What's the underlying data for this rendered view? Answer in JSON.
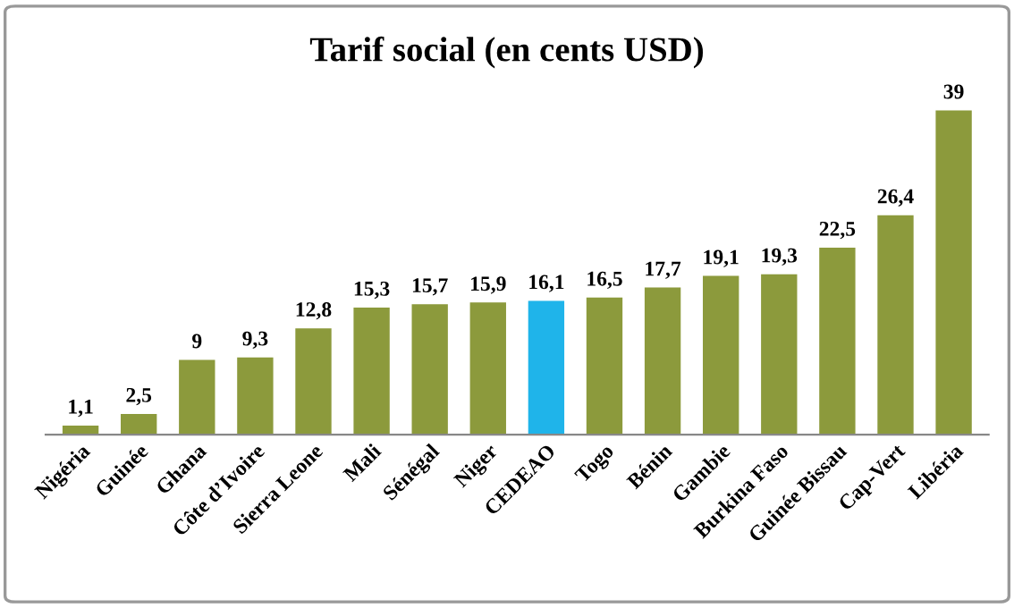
{
  "chart_data": {
    "type": "bar",
    "title": "Tarif social (en cents USD)",
    "categories": [
      "Nigéria",
      "Guinée",
      "Ghana",
      "Côte d’Ivoire",
      "Sierra Leone",
      "Mali",
      "Sénégal",
      "Niger",
      "CEDEAO",
      "Togo",
      "Bénin",
      "Gambie",
      "Burkina Faso",
      "Guinée Bissau",
      "Cap-Vert",
      "Libéria"
    ],
    "values": [
      1.1,
      2.5,
      9,
      9.3,
      12.8,
      15.3,
      15.7,
      15.9,
      16.1,
      16.5,
      17.7,
      19.1,
      19.3,
      22.5,
      26.4,
      39
    ],
    "value_labels": [
      "1,1",
      "2,5",
      "9",
      "9,3",
      "12,8",
      "15,3",
      "15,7",
      "15,9",
      "16,1",
      "16,5",
      "17,7",
      "19,1",
      "19,3",
      "22,5",
      "26,4",
      "39"
    ],
    "colors": [
      "#8c9a3c",
      "#8c9a3c",
      "#8c9a3c",
      "#8c9a3c",
      "#8c9a3c",
      "#8c9a3c",
      "#8c9a3c",
      "#8c9a3c",
      "#1fb4ea",
      "#8c9a3c",
      "#8c9a3c",
      "#8c9a3c",
      "#8c9a3c",
      "#8c9a3c",
      "#8c9a3c",
      "#8c9a3c"
    ],
    "grid": false,
    "legend": false
  }
}
